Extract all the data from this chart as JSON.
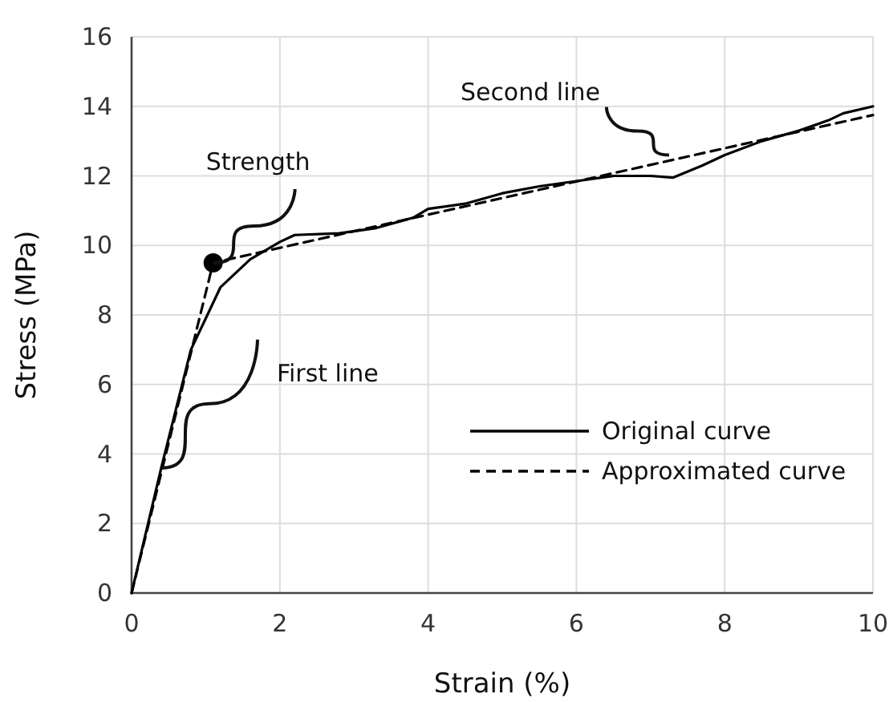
{
  "chart_data": {
    "type": "line",
    "xlabel": "Strain (%)",
    "ylabel": "Stress (MPa)",
    "xlim": [
      0,
      10
    ],
    "ylim": [
      0,
      16
    ],
    "xticks": [
      0,
      2,
      4,
      6,
      8,
      10
    ],
    "yticks": [
      0,
      2,
      4,
      6,
      8,
      10,
      12,
      14,
      16
    ],
    "grid": true,
    "legend": "bottom right",
    "series": [
      {
        "name": "Original curve",
        "color": "#000000",
        "line_style": "solid",
        "marker": "none",
        "x": [
          0,
          0.4,
          0.8,
          1.2,
          1.6,
          2.0,
          2.2,
          2.8,
          3.3,
          3.8,
          4.0,
          4.5,
          5.0,
          5.5,
          6.0,
          6.5,
          7.0,
          7.3,
          7.7,
          8.0,
          8.5,
          9.0,
          9.4,
          9.6,
          10
        ],
        "values": [
          0,
          3.6,
          7.0,
          8.8,
          9.6,
          10.1,
          10.3,
          10.35,
          10.5,
          10.8,
          11.05,
          11.2,
          11.5,
          11.7,
          11.85,
          12.0,
          12.0,
          11.95,
          12.3,
          12.6,
          13.0,
          13.3,
          13.6,
          13.8,
          14.0
        ]
      },
      {
        "name": "Approximated curve",
        "color": "#000000",
        "line_style": "dashed",
        "marker": "none",
        "x": [
          0,
          1.1,
          10
        ],
        "values": [
          0,
          9.5,
          13.75
        ]
      },
      {
        "type": "scatter",
        "color": "#000000",
        "marker": "circle",
        "x": [
          1.1
        ],
        "values": [
          9.5
        ]
      }
    ],
    "annotations": [
      {
        "text": "Strength",
        "x": 1.1,
        "y": 9.5
      },
      {
        "text": "First line",
        "x": 0.4,
        "y": 3.6
      },
      {
        "text": "Second line",
        "x": 7.25,
        "y": 12.6
      }
    ]
  }
}
